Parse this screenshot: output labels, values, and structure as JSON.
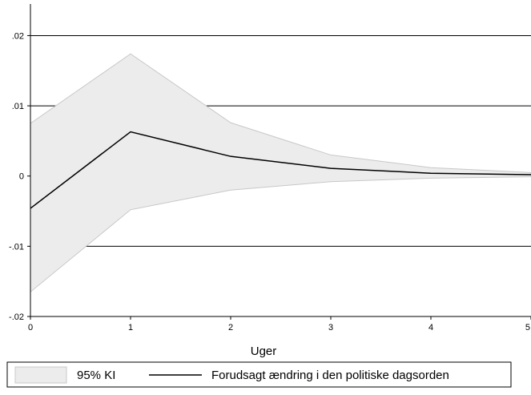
{
  "chart_data": {
    "type": "line",
    "title": "",
    "xlabel": "Uger",
    "ylabel": "",
    "x": [
      0,
      1,
      2,
      3,
      4,
      5
    ],
    "xticks": [
      {
        "value": 0,
        "label": "0"
      },
      {
        "value": 1,
        "label": "1"
      },
      {
        "value": 2,
        "label": "2"
      },
      {
        "value": 3,
        "label": "3"
      },
      {
        "value": 4,
        "label": "4"
      },
      {
        "value": 5,
        "label": "5"
      }
    ],
    "yticks": [
      {
        "value": -0.02,
        "label": "-.02"
      },
      {
        "value": -0.01,
        "label": "-.01"
      },
      {
        "value": 0,
        "label": "0"
      },
      {
        "value": 0.01,
        "label": ".01"
      },
      {
        "value": 0.02,
        "label": ".02"
      }
    ],
    "xlim": [
      0,
      5
    ],
    "ylim": [
      -0.02,
      0.0245
    ],
    "grid": "horizontal",
    "series": [
      {
        "name": "Forudsagt ændring i den politiske dagsorden",
        "kind": "line",
        "color": "#000000",
        "values": [
          -0.0046,
          0.0063,
          0.0028,
          0.0011,
          0.0004,
          0.0002
        ]
      },
      {
        "name": "95% KI",
        "kind": "band",
        "color": "#ececec",
        "edge_color": "#c8c8c8",
        "lower": [
          -0.0165,
          -0.0048,
          -0.002,
          -0.0008,
          -0.0003,
          -0.0001
        ],
        "upper": [
          0.0075,
          0.0174,
          0.0076,
          0.003,
          0.0012,
          0.0005
        ]
      }
    ],
    "legend": {
      "position": "bottom",
      "items": [
        {
          "label": "95% KI",
          "swatch": "band"
        },
        {
          "label": "Forudsagt ændring i den politiske dagsorden",
          "swatch": "line"
        }
      ]
    }
  }
}
